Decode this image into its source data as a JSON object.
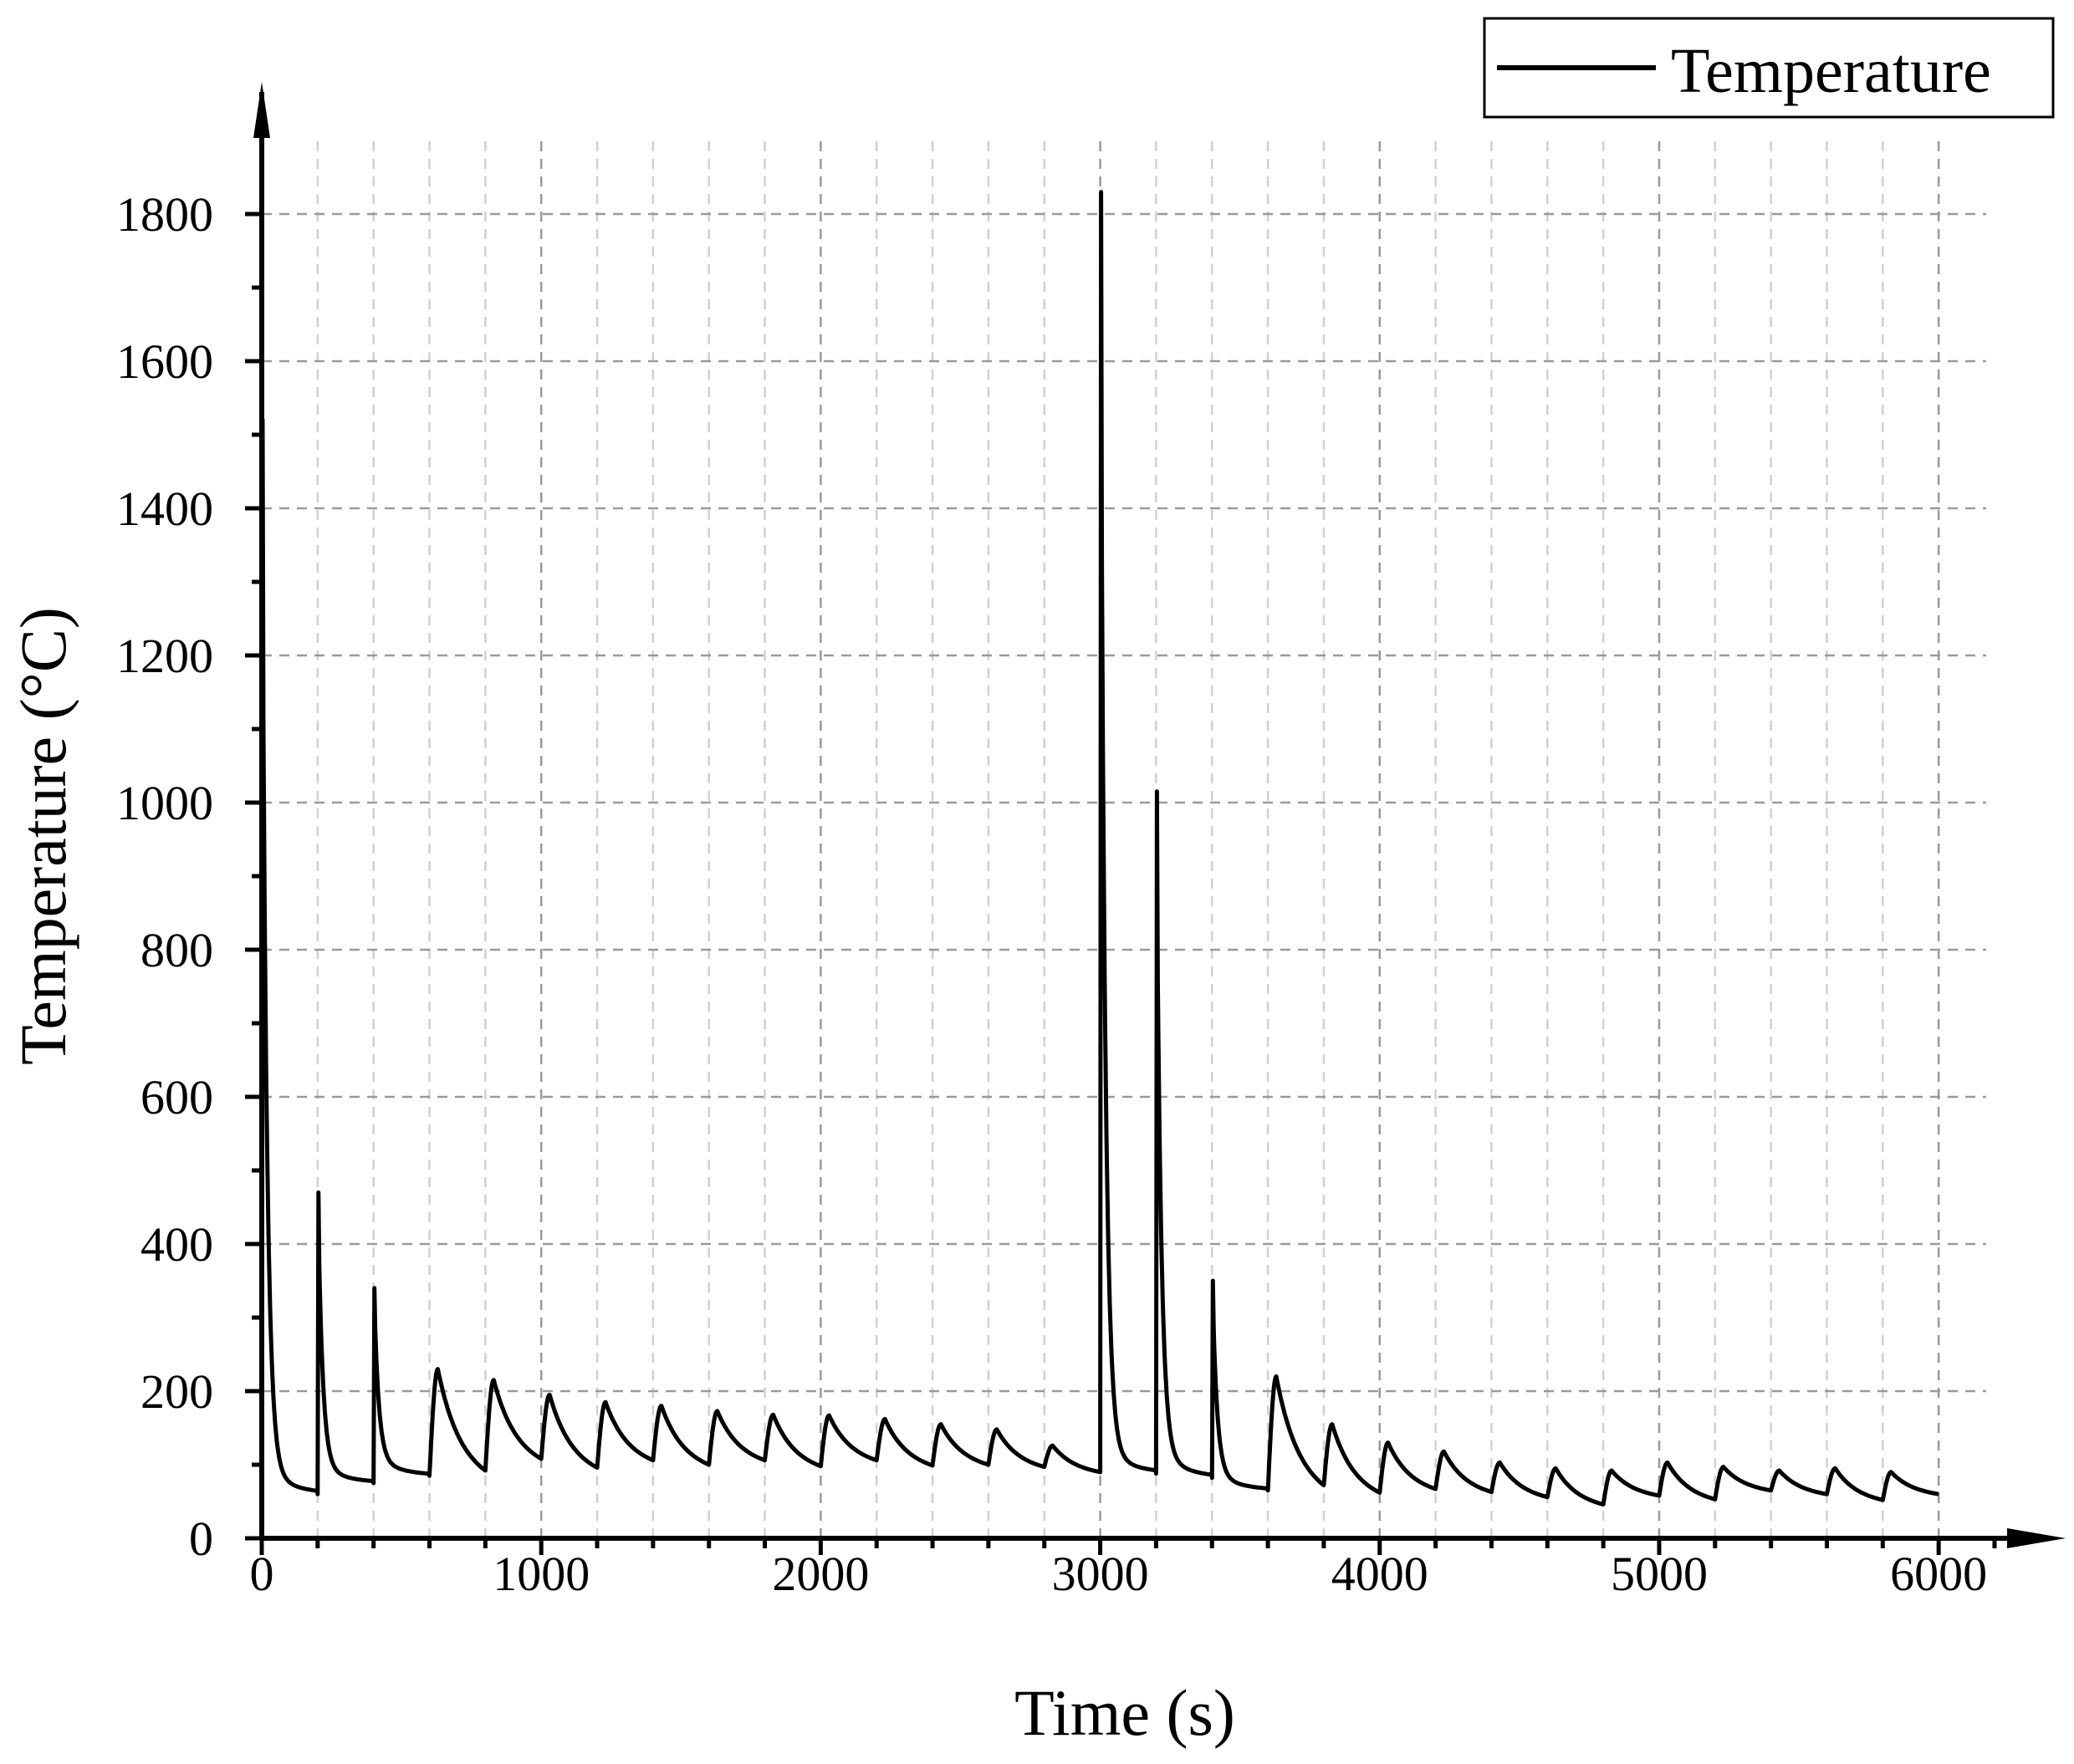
{
  "chart_data": {
    "type": "line",
    "xlabel": "Time (s)",
    "ylabel": "Temperature (°C)",
    "xlim": [
      0,
      6200
    ],
    "ylim": [
      0,
      1900
    ],
    "xticks": [
      0,
      1000,
      2000,
      3000,
      4000,
      5000,
      6000
    ],
    "yticks": [
      0,
      200,
      400,
      600,
      800,
      1000,
      1200,
      1400,
      1600,
      1800
    ],
    "grid": true,
    "legend_position": "top-right",
    "colors": {
      "line": "#000000",
      "grid": "#9a9a9a"
    },
    "series": [
      {
        "name": "Temperature",
        "cycles": [
          {
            "t": 0,
            "pre": 0,
            "peak": 1520,
            "end": 60
          },
          {
            "t": 200,
            "pre": 60,
            "peak": 470,
            "end": 75
          },
          {
            "t": 400,
            "pre": 75,
            "peak": 340,
            "end": 85
          },
          {
            "t": 600,
            "pre": 85,
            "peak": 230,
            "end": 92
          },
          {
            "t": 800,
            "pre": 92,
            "peak": 215,
            "end": 108
          },
          {
            "t": 1000,
            "pre": 108,
            "peak": 195,
            "end": 96
          },
          {
            "t": 1200,
            "pre": 96,
            "peak": 185,
            "end": 106
          },
          {
            "t": 1400,
            "pre": 106,
            "peak": 180,
            "end": 100
          },
          {
            "t": 1600,
            "pre": 100,
            "peak": 173,
            "end": 106
          },
          {
            "t": 1800,
            "pre": 106,
            "peak": 168,
            "end": 98
          },
          {
            "t": 2000,
            "pre": 98,
            "peak": 167,
            "end": 106
          },
          {
            "t": 2200,
            "pre": 106,
            "peak": 162,
            "end": 99
          },
          {
            "t": 2400,
            "pre": 99,
            "peak": 155,
            "end": 100
          },
          {
            "t": 2600,
            "pre": 100,
            "peak": 148,
            "end": 97
          },
          {
            "t": 2800,
            "pre": 97,
            "peak": 126,
            "end": 90
          },
          {
            "t": 3000,
            "pre": 90,
            "peak": 1830,
            "end": 88
          },
          {
            "t": 3200,
            "pre": 88,
            "peak": 1015,
            "end": 82
          },
          {
            "t": 3400,
            "pre": 82,
            "peak": 350,
            "end": 65
          },
          {
            "t": 3600,
            "pre": 65,
            "peak": 220,
            "end": 72
          },
          {
            "t": 3800,
            "pre": 72,
            "peak": 155,
            "end": 62
          },
          {
            "t": 4000,
            "pre": 62,
            "peak": 130,
            "end": 67
          },
          {
            "t": 4200,
            "pre": 67,
            "peak": 118,
            "end": 63
          },
          {
            "t": 4400,
            "pre": 63,
            "peak": 103,
            "end": 56
          },
          {
            "t": 4600,
            "pre": 56,
            "peak": 95,
            "end": 46
          },
          {
            "t": 4800,
            "pre": 46,
            "peak": 92,
            "end": 58
          },
          {
            "t": 5000,
            "pre": 58,
            "peak": 103,
            "end": 53
          },
          {
            "t": 5200,
            "pre": 53,
            "peak": 97,
            "end": 65
          },
          {
            "t": 5400,
            "pre": 65,
            "peak": 92,
            "end": 60
          },
          {
            "t": 5600,
            "pre": 60,
            "peak": 95,
            "end": 52
          },
          {
            "t": 5800,
            "pre": 52,
            "peak": 90,
            "end": 60
          }
        ],
        "end_time": 6000
      }
    ]
  }
}
